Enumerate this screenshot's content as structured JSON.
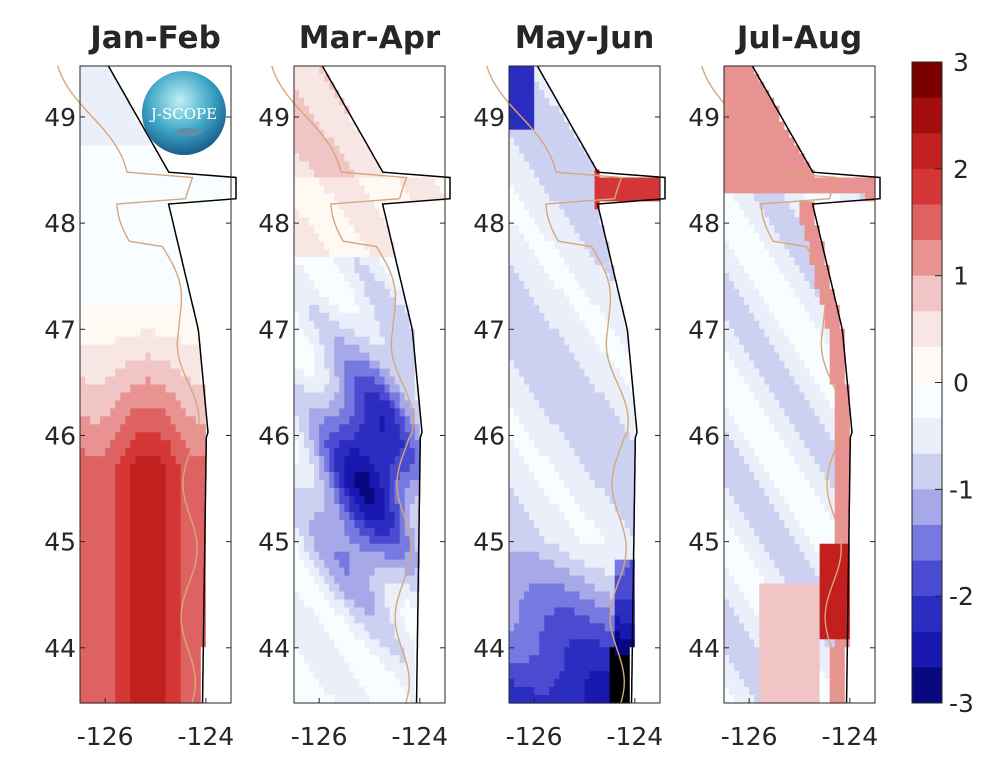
{
  "chart_data": {
    "type": "heatmap",
    "panels": [
      {
        "title": "Jan-Feb",
        "pattern": "positive anomaly offshore south, near zero north"
      },
      {
        "title": "Mar-Apr",
        "pattern": "strong negative anomaly centered 45-46.5N"
      },
      {
        "title": "May-Jun",
        "pattern": "negative anomaly, strongest nearshore south of 45N and NW corner; positive in Strait"
      },
      {
        "title": "Jul-Aug",
        "pattern": "positive nearshore band and 44-45N, positive in Strait; weak negative offshore"
      }
    ],
    "xlim": [
      -126.5,
      -123.5
    ],
    "ylim": [
      43.48,
      49.48
    ],
    "x_ticks": [
      -126,
      -124
    ],
    "x_tick_labels": [
      "-126",
      "-124"
    ],
    "y_ticks": [
      44,
      45,
      46,
      47,
      48,
      49
    ],
    "y_tick_labels": [
      "44",
      "45",
      "46",
      "47",
      "48",
      "49"
    ],
    "colorbar": {
      "range": [
        -3,
        3
      ],
      "ticks": [
        3,
        2,
        1,
        0,
        -1,
        -2,
        -3
      ],
      "tick_labels": [
        "3",
        "2",
        "1",
        "0",
        "-1",
        "-2",
        "-3"
      ],
      "colors_top_to_bottom": [
        "#7a0000",
        "#a30d0d",
        "#c21f1f",
        "#d43636",
        "#de6262",
        "#e89292",
        "#f1c5c5",
        "#f8e6e4",
        "#fff9f3",
        "#f8fdff",
        "#eaeff9",
        "#cdd1f1",
        "#a6a8e7",
        "#7679e0",
        "#4a4bd1",
        "#2b2cc0",
        "#1818b0",
        "#070780"
      ]
    },
    "contour_color": "#d6a77a",
    "coastline_color": "#000000"
  },
  "logo": {
    "text": "J-SCOPE"
  }
}
